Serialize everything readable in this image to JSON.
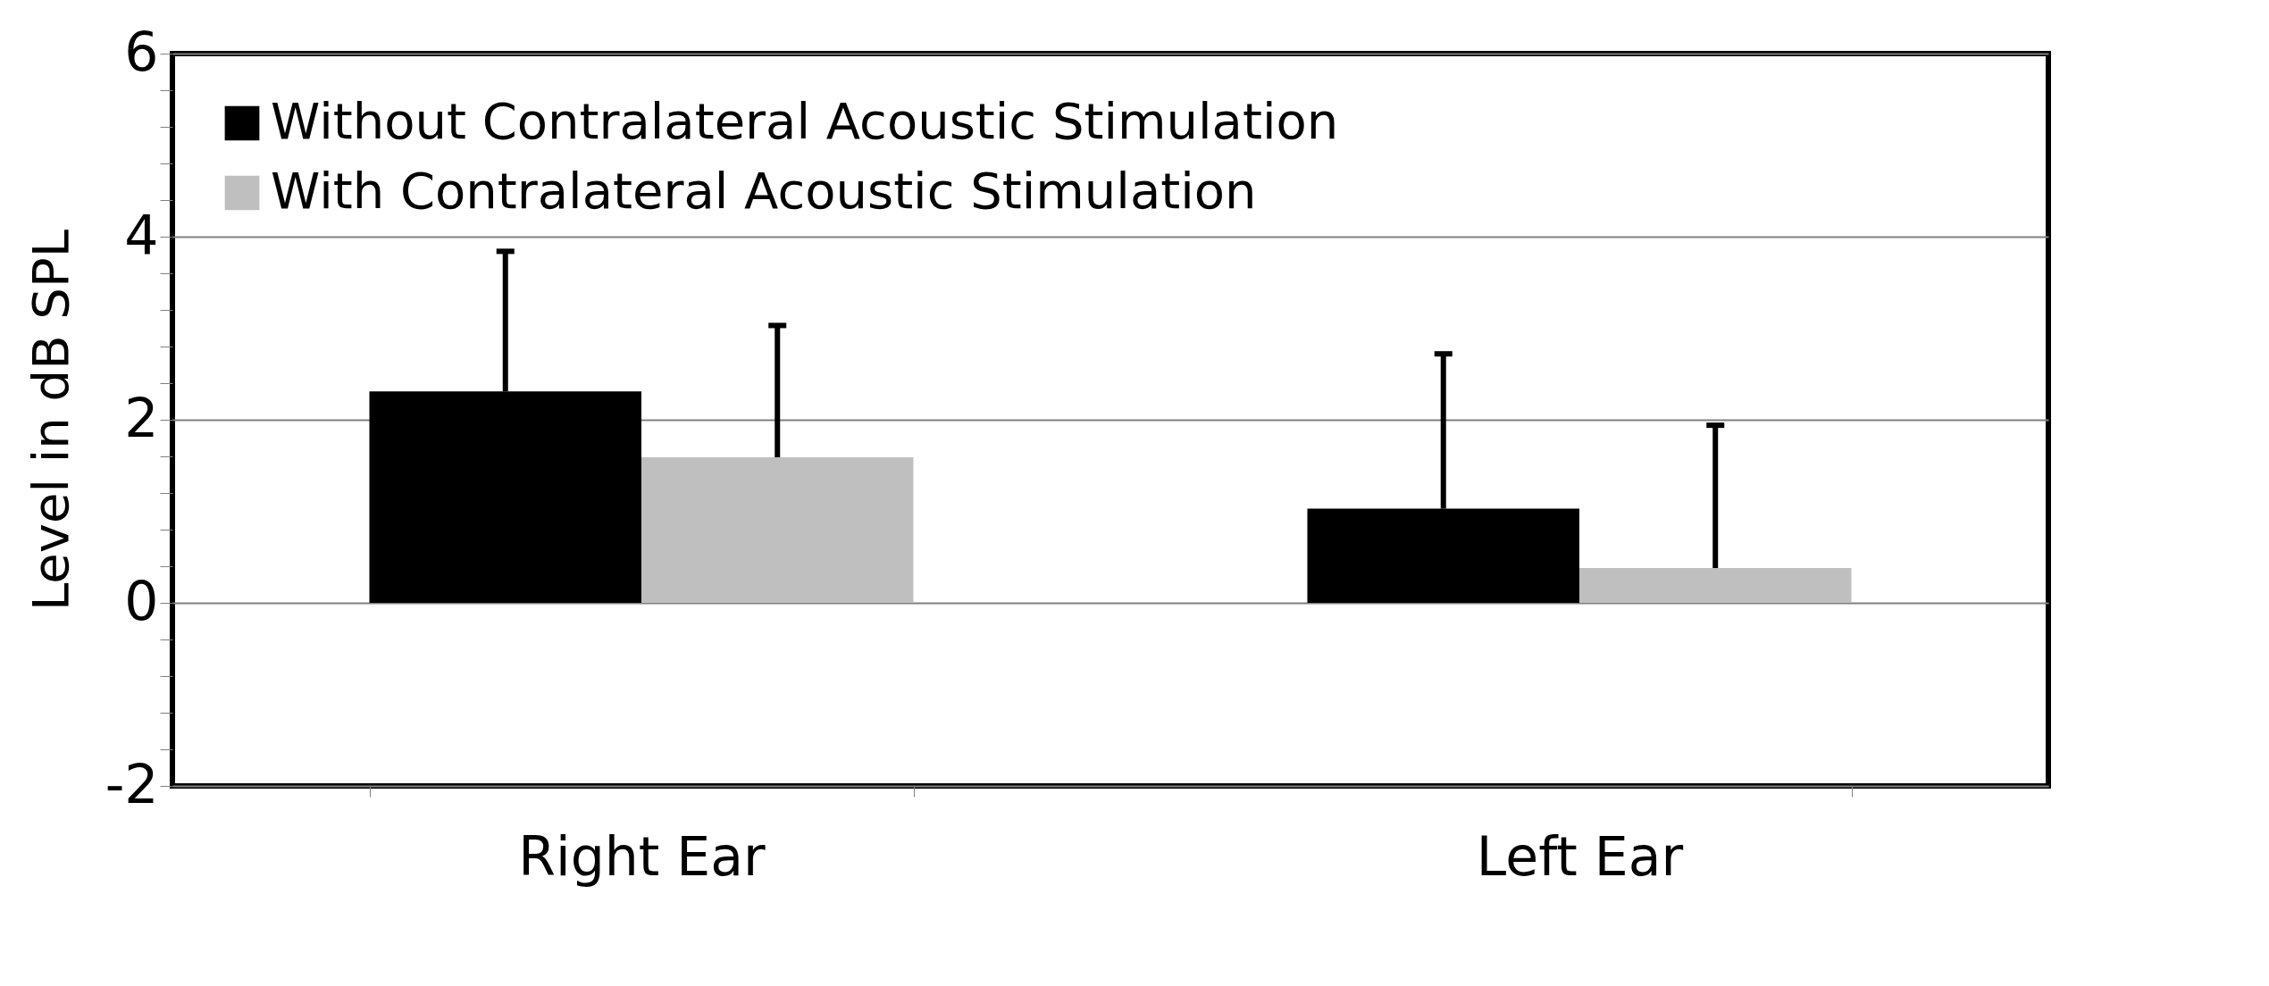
{
  "chart_data": {
    "type": "bar",
    "ylabel": "Level in dB SPL",
    "categories": [
      "Right Ear",
      "Left Ear"
    ],
    "series": [
      {
        "name": "Without Contralateral Acoustic Stimulation",
        "color": "#000000",
        "values": [
          2.31,
          1.03
        ],
        "errors": [
          [
            2.31,
            3.84
          ],
          [
            1.03,
            2.72
          ]
        ]
      },
      {
        "name": "With Contralateral Acoustic Stimulation",
        "color": "#bfbfbf",
        "values": [
          1.59,
          0.38
        ],
        "errors": [
          [
            1.59,
            3.03
          ],
          [
            0.38,
            1.94
          ]
        ]
      }
    ],
    "ylim": [
      -2,
      6
    ],
    "yticks": [
      -2,
      {
        "value": -1.6,
        "label": null
      },
      {
        "value": -1.2,
        "label": null
      },
      {
        "value": -0.8,
        "label": null
      },
      {
        "value": -0.4,
        "label": null
      },
      0,
      {
        "value": 0.4,
        "label": null
      },
      {
        "value": 0.8,
        "label": null
      },
      {
        "value": 1.2,
        "label": null
      },
      {
        "value": 1.6,
        "label": null
      },
      2,
      {
        "value": 2.4,
        "label": null
      },
      {
        "value": 2.8,
        "label": null
      },
      {
        "value": 3.2,
        "label": null
      },
      {
        "value": 3.6,
        "label": null
      },
      4,
      {
        "value": 4.4,
        "label": null
      },
      {
        "value": 4.8,
        "label": null
      },
      {
        "value": 5.2,
        "label": null
      },
      {
        "value": 5.6,
        "label": null
      },
      6
    ],
    "grid": "y",
    "legend": "top left"
  }
}
